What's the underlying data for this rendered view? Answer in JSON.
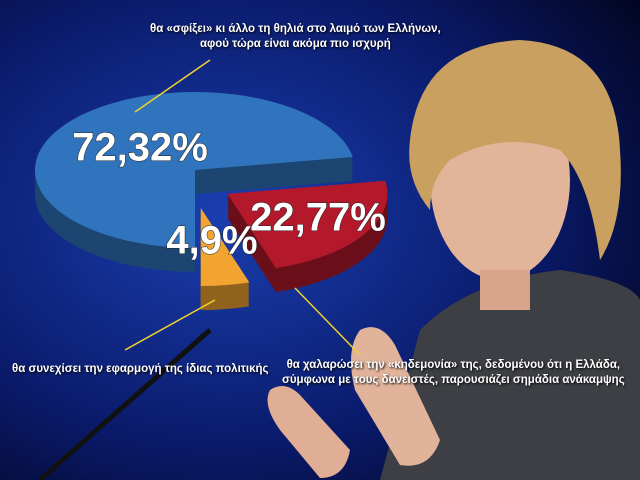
{
  "chart_data": {
    "type": "pie",
    "categories": [
      "θα «σφίξει» κι άλλο τη θηλιά στο λαιμό των Ελλήνων,\nαφού τώρα είναι ακόμα πιο ισχυρή",
      "θα χαλαρώσει την «κηδεμονία» της, δεδομένου ότι η Ελλάδα,\nσύμφωνα με τους δανειστές, παρουσιάζει σημάδια ανάκαμψης",
      "θα συνεχίσει την εφαρμογή της ίδιας πολιτικής"
    ],
    "values": [
      72.32,
      22.77,
      4.9
    ],
    "value_labels": [
      "72,32%",
      "22,77%",
      "4,9%"
    ],
    "colors": [
      "#2f74bd",
      "#b3192b",
      "#f2a431"
    ]
  }
}
